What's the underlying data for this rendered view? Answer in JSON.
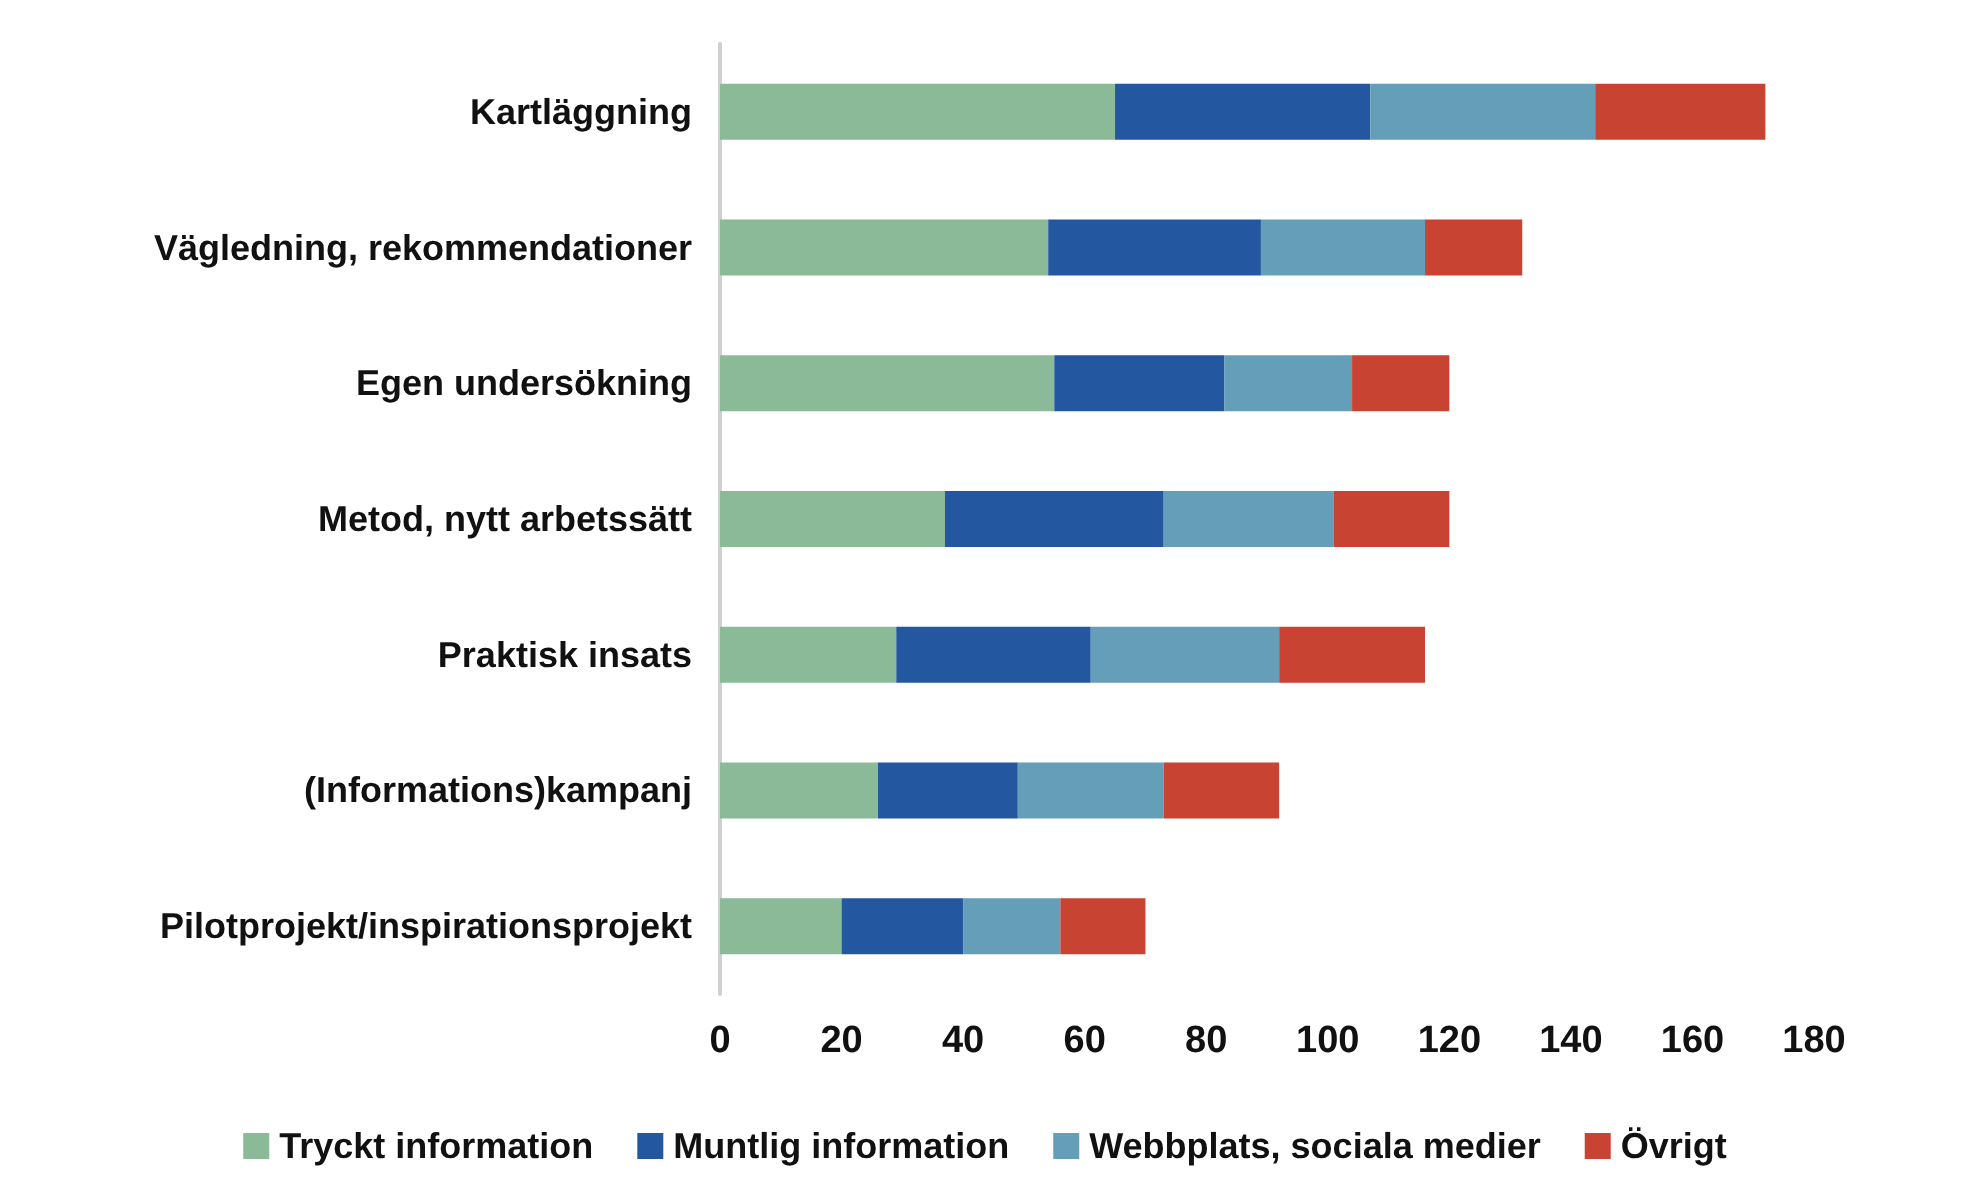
{
  "chart_data": {
    "type": "bar",
    "orientation": "horizontal",
    "stacked": true,
    "categories": [
      "Kartläggning",
      "Vägledning, rekommendationer",
      "Egen undersökning",
      "Metod, nytt arbetssätt",
      "Praktisk insats",
      "(Informations)kampanj",
      "Pilotprojekt/inspirationsprojekt"
    ],
    "series": [
      {
        "name": "Tryckt information",
        "color": "#8aba98",
        "values": [
          65,
          54,
          55,
          37,
          29,
          26,
          20
        ]
      },
      {
        "name": "Muntlig information",
        "color": "#2358a0",
        "values": [
          42,
          35,
          28,
          36,
          32,
          23,
          20
        ]
      },
      {
        "name": "Webbplats, sociala medier",
        "color": "#659eb9",
        "values": [
          37,
          27,
          21,
          28,
          31,
          24,
          16
        ]
      },
      {
        "name": "Övrigt",
        "color": "#c94332",
        "values": [
          28,
          16,
          16,
          19,
          24,
          19,
          14
        ]
      }
    ],
    "xlim": [
      0,
      180
    ],
    "xticks": [
      0,
      20,
      40,
      60,
      80,
      100,
      120,
      140,
      160,
      180
    ],
    "grid": false,
    "legend": "bottom"
  }
}
